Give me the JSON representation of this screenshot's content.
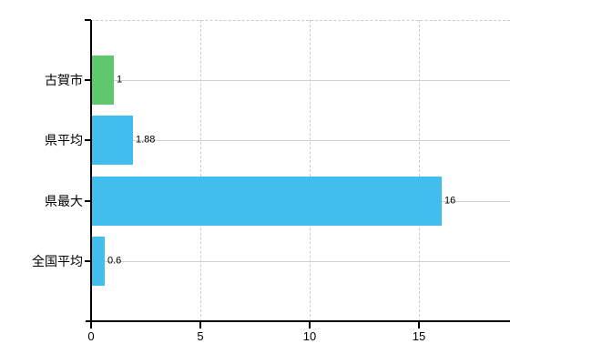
{
  "chart_data": {
    "type": "bar",
    "orientation": "horizontal",
    "title": "",
    "xlabel": "",
    "ylabel": "",
    "categories": [
      "古賀市",
      "県平均",
      "県最大",
      "全国平均"
    ],
    "values": [
      1,
      1.88,
      16,
      0.6
    ],
    "value_labels": [
      "1",
      "1.88",
      "16",
      "0.6"
    ],
    "bar_colors": [
      "#5fc86e",
      "#41bdee",
      "#41bdee",
      "#41bdee"
    ],
    "xlim": [
      0,
      19.17
    ],
    "x_ticks": [
      0,
      5,
      10,
      15
    ],
    "x_tick_labels": [
      "0",
      "5",
      "10",
      "15"
    ],
    "grid": true,
    "legend": false
  },
  "colors": {
    "background": "#ffffff",
    "axis": "#000000",
    "gridline": "#ccd3cc",
    "dashed_gridline": "#cccccc",
    "highlight_bar": "#5fc86e",
    "default_bar": "#41bdee",
    "text": "#000000"
  }
}
